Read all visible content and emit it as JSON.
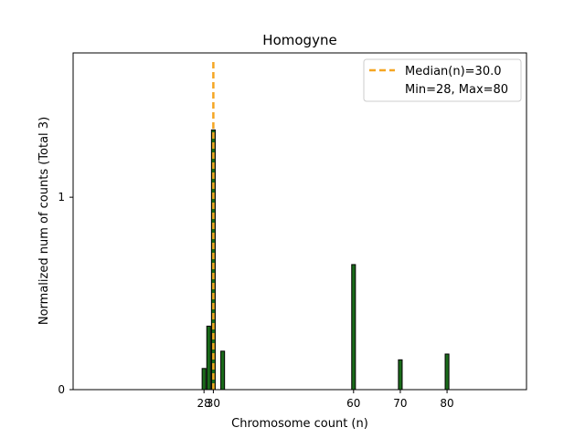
{
  "chart_data": {
    "type": "bar",
    "title": "Homogyne",
    "xlabel": "Chromosome count (n)",
    "ylabel": "Normalized num of counts     (Total 3)",
    "xlim": [
      0,
      97
    ],
    "ylim": [
      0,
      1.75
    ],
    "x_ticks": [
      {
        "value": 28,
        "label": "28"
      },
      {
        "value": 30,
        "label": "30"
      },
      {
        "value": 60,
        "label": "60"
      },
      {
        "value": 70,
        "label": "70"
      },
      {
        "value": 80,
        "label": "80"
      }
    ],
    "y_ticks": [
      {
        "value": 0,
        "label": "0"
      },
      {
        "value": 1,
        "label": "1"
      }
    ],
    "bars": [
      {
        "x": 28,
        "value": 0.11
      },
      {
        "x": 29,
        "value": 0.33
      },
      {
        "x": 30,
        "value": 1.35
      },
      {
        "x": 32,
        "value": 0.2
      },
      {
        "x": 60,
        "value": 0.65
      },
      {
        "x": 70,
        "value": 0.155
      },
      {
        "x": 80,
        "value": 0.185
      }
    ],
    "bar_width": 0.8,
    "median": 30.0,
    "legend": {
      "position": "top-right",
      "entries": [
        {
          "label": "Median(n)=30.0",
          "style": "dashed-line"
        },
        {
          "label": "Min=28, Max=80",
          "style": "none"
        }
      ]
    },
    "colors": {
      "bar_fill": "#1a6b1a",
      "bar_edge": "#000000",
      "median_line": "#f5a623",
      "axis": "#000000"
    }
  }
}
